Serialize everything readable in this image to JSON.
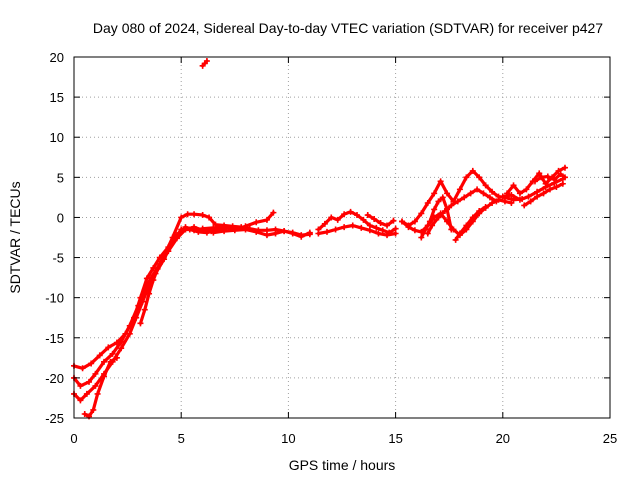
{
  "chart_data": {
    "type": "scatter",
    "title": "Day 080 of 2024, Sidereal Day-to-day VTEC variation (SDTVAR) for receiver p427",
    "xlabel": "GPS time / hours",
    "ylabel": "SDTVAR / TECUs",
    "xlim": [
      0,
      25
    ],
    "ylim": [
      -25,
      20
    ],
    "xticks": [
      "0",
      "5",
      "10",
      "15",
      "20",
      "25"
    ],
    "yticks": [
      "-25",
      "-20",
      "-15",
      "-10",
      "-5",
      "0",
      "5",
      "10",
      "15",
      "20"
    ],
    "grid": true,
    "marker_color": "#ff0000",
    "series": [
      {
        "x": [
          0.0,
          0.4,
          0.8,
          1.2,
          1.6,
          2.0,
          2.4,
          2.8,
          3.1,
          3.4,
          3.7,
          4.0,
          4.4,
          4.8,
          5.2,
          5.6,
          6.0,
          6.5,
          7.0,
          7.5,
          8.0,
          8.5,
          9.0,
          9.3
        ],
        "y": [
          -18.5,
          -18.8,
          -18.2,
          -17.2,
          -16.2,
          -15.6,
          -14.5,
          -12.5,
          -10.0,
          -7.6,
          -6.3,
          -5.0,
          -3.7,
          -2.2,
          -1.2,
          -1.6,
          -1.4,
          -1.3,
          -1.2,
          -1.5,
          -1.1,
          -0.6,
          -0.3,
          0.6
        ]
      },
      {
        "x": [
          0.0,
          0.3,
          0.7,
          1.0,
          1.4,
          1.8,
          2.2,
          2.6,
          3.0,
          3.3,
          3.6,
          4.0,
          4.4,
          4.8,
          5.2,
          5.6,
          6.0,
          6.4
        ],
        "y": [
          -20.0,
          -21.0,
          -20.5,
          -19.5,
          -18.0,
          -17.0,
          -15.5,
          -13.5,
          -11.0,
          -9.0,
          -7.5,
          -5.8,
          -4.2,
          -2.6,
          -1.5,
          -1.2,
          -1.6,
          -1.7
        ]
      },
      {
        "x": [
          0.0,
          0.3,
          0.6,
          1.0,
          1.4,
          1.8,
          2.2,
          2.6,
          2.9,
          3.2,
          3.5,
          3.8,
          4.2,
          4.6,
          5.0,
          5.4,
          5.8,
          6.2,
          6.6,
          7.0
        ],
        "y": [
          -22.0,
          -22.8,
          -22.0,
          -21.0,
          -19.5,
          -18.0,
          -16.3,
          -14.5,
          -12.5,
          -10.5,
          -8.5,
          -7.0,
          -5.2,
          -3.0,
          -1.5,
          -1.5,
          -1.8,
          -1.9,
          -1.6,
          -1.5
        ]
      },
      {
        "x": [
          0.5,
          0.7,
          0.9,
          1.1,
          1.4,
          1.7,
          2.0
        ],
        "y": [
          -24.5,
          -24.8,
          -24.0,
          -22.0,
          -19.8,
          -18.0,
          -17.5
        ]
      },
      {
        "x": [
          3.1,
          3.3,
          3.5,
          3.7,
          3.9,
          4.2,
          4.6,
          5.0,
          5.3,
          5.6,
          6.0,
          6.3,
          6.6,
          7.0,
          7.4,
          7.8,
          8.2,
          8.6,
          9.0,
          9.4,
          9.8,
          10.2,
          10.6,
          11.0
        ],
        "y": [
          -13.2,
          -11.5,
          -9.5,
          -7.8,
          -6.4,
          -4.8,
          -2.5,
          0.0,
          0.4,
          0.4,
          0.3,
          0.0,
          -0.9,
          -1.0,
          -1.1,
          -1.2,
          -1.4,
          -1.6,
          -1.6,
          -1.5,
          -1.7,
          -2.0,
          -2.4,
          -1.9
        ]
      },
      {
        "x": [
          6.5,
          7.0,
          7.5,
          8.0,
          8.5,
          9.0,
          9.4,
          9.8,
          10.2,
          10.6,
          11.0
        ],
        "y": [
          -1.9,
          -1.7,
          -1.6,
          -1.5,
          -1.8,
          -2.2,
          -2.0,
          -1.7,
          -1.9,
          -2.2,
          -2.1
        ]
      },
      {
        "x": [
          6.0,
          6.1,
          6.2
        ],
        "y": [
          18.9,
          19.2,
          19.5
        ]
      },
      {
        "x": [
          11.4,
          11.7,
          12.0,
          12.3,
          12.6,
          12.9,
          13.2,
          13.5,
          13.8,
          14.1,
          14.4,
          14.7,
          15.0
        ],
        "y": [
          -1.5,
          -0.8,
          0.0,
          -0.3,
          0.4,
          0.7,
          0.3,
          -0.3,
          -1.0,
          -1.3,
          -1.6,
          -1.9,
          -1.4
        ]
      },
      {
        "x": [
          11.4,
          11.8,
          12.2,
          12.6,
          13.0,
          13.4,
          13.8,
          14.2,
          14.6,
          15.0
        ],
        "y": [
          -2.0,
          -1.8,
          -1.5,
          -1.2,
          -1.0,
          -1.3,
          -1.6,
          -2.0,
          -2.2,
          -2.0
        ]
      },
      {
        "x": [
          13.7,
          14.0,
          14.3,
          14.6,
          14.9
        ],
        "y": [
          0.3,
          -0.2,
          -0.7,
          -1.0,
          -0.4
        ]
      },
      {
        "x": [
          15.3,
          15.6,
          15.9,
          16.2,
          16.5,
          16.8,
          17.1,
          17.4,
          17.7,
          18.0,
          18.3,
          18.6,
          18.9,
          19.2,
          19.5,
          19.8,
          20.1,
          20.5,
          20.9
        ],
        "y": [
          -0.5,
          -1.0,
          -0.5,
          0.5,
          1.8,
          3.0,
          4.5,
          3.0,
          2.0,
          3.5,
          5.0,
          5.8,
          5.0,
          4.0,
          3.2,
          2.6,
          2.5,
          2.2,
          2.3
        ]
      },
      {
        "x": [
          15.3,
          15.6,
          15.9,
          16.2,
          16.5,
          16.8,
          17.1,
          17.4,
          17.7,
          18.0,
          18.3,
          18.6,
          18.9,
          19.2,
          19.5,
          19.8,
          20.1,
          20.4
        ],
        "y": [
          -0.5,
          -1.2,
          -1.6,
          -1.8,
          -1.0,
          0.0,
          0.5,
          -0.5,
          -1.5,
          -2.2,
          -1.5,
          -0.5,
          0.5,
          1.2,
          1.8,
          2.2,
          2.0,
          1.8
        ]
      },
      {
        "x": [
          16.2,
          16.4,
          16.6,
          16.8,
          17.0,
          17.2,
          17.4,
          17.6
        ],
        "y": [
          -2.5,
          -1.5,
          -0.5,
          1.0,
          2.0,
          2.5,
          1.0,
          -1.5
        ]
      },
      {
        "x": [
          16.5,
          16.7,
          17.0,
          17.3,
          17.6,
          17.9,
          18.2,
          18.5,
          18.8,
          19.1,
          19.4,
          19.7
        ],
        "y": [
          -2.0,
          -1.0,
          0.0,
          0.8,
          1.5,
          2.0,
          2.5,
          3.0,
          3.5,
          3.0,
          2.5,
          2.0
        ]
      },
      {
        "x": [
          17.8,
          18.0,
          18.3,
          18.6,
          18.9,
          19.2
        ],
        "y": [
          -2.8,
          -2.0,
          -1.0,
          0.0,
          0.8,
          1.3
        ]
      },
      {
        "x": [
          20.2,
          20.5,
          20.8,
          21.1,
          21.4,
          21.7,
          22.0,
          22.3,
          22.6,
          22.9
        ],
        "y": [
          3.0,
          4.0,
          3.0,
          3.5,
          4.5,
          5.5,
          4.2,
          5.0,
          5.8,
          6.2
        ]
      },
      {
        "x": [
          20.0,
          20.4,
          20.8,
          21.2,
          21.6,
          22.0,
          22.4,
          22.8
        ],
        "y": [
          2.6,
          2.8,
          2.2,
          2.6,
          3.2,
          3.8,
          4.3,
          4.8
        ]
      },
      {
        "x": [
          21.5,
          21.8,
          22.1,
          22.4,
          22.7,
          22.9
        ],
        "y": [
          4.5,
          5.0,
          5.1,
          4.7,
          5.4,
          5.0
        ]
      },
      {
        "x": [
          21.0,
          21.3,
          21.6,
          21.9,
          22.2,
          22.5,
          22.8
        ],
        "y": [
          1.5,
          2.0,
          2.6,
          3.0,
          3.5,
          3.8,
          4.2
        ]
      }
    ]
  }
}
